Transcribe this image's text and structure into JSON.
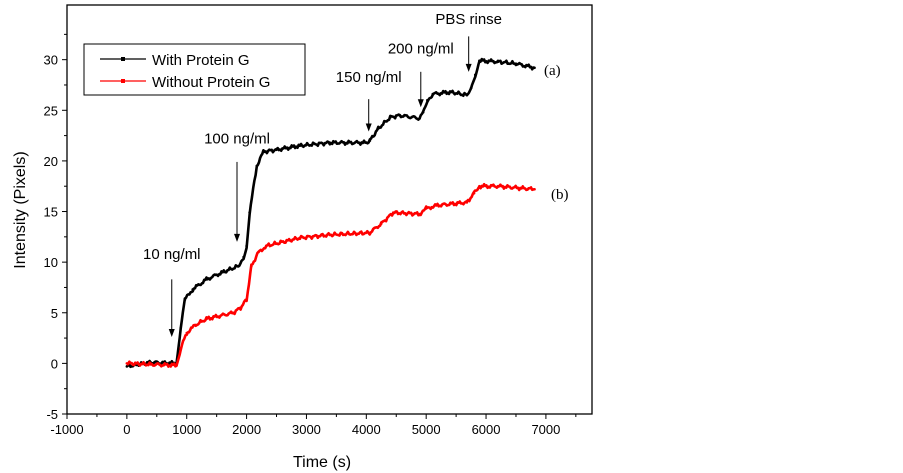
{
  "chart_data": {
    "type": "line",
    "title": "",
    "xlabel": "Time (s)",
    "ylabel": "Intensity (Pixels)",
    "xlim": [
      -1000,
      7770
    ],
    "ylim": [
      -5,
      35.4
    ],
    "xticks": [
      -1000,
      0,
      1000,
      2000,
      3000,
      4000,
      5000,
      6000,
      7000
    ],
    "yticks": [
      -5,
      0,
      5,
      10,
      15,
      20,
      25,
      30
    ],
    "grid": false,
    "legend_position": "top-left",
    "series": [
      {
        "name": "With Protein G",
        "color": "#000000",
        "label": "(a)",
        "x": [
          0,
          400,
          830,
          900,
          970,
          1100,
          1330,
          1600,
          1860,
          1950,
          2000,
          2050,
          2170,
          2280,
          2500,
          2890,
          3390,
          4000,
          4060,
          4200,
          4400,
          4560,
          4890,
          4950,
          5020,
          5110,
          5400,
          5680,
          5750,
          5820,
          5890,
          6200,
          6500,
          6810
        ],
        "y": [
          -0.3,
          0.1,
          0.0,
          3.5,
          6.3,
          7.3,
          8.3,
          9.0,
          9.6,
          10.5,
          11.6,
          14.9,
          19.5,
          20.9,
          21.1,
          21.5,
          21.8,
          21.8,
          22.0,
          23.2,
          24.3,
          24.5,
          24.2,
          24.8,
          26.0,
          26.6,
          26.8,
          26.5,
          27.2,
          28.5,
          29.9,
          29.8,
          29.6,
          29.2
        ]
      },
      {
        "name": "Without Protein G",
        "color": "#ff0000",
        "label": "(b)",
        "x": [
          0,
          400,
          830,
          900,
          1000,
          1150,
          1330,
          1780,
          1900,
          2000,
          2080,
          2200,
          2330,
          2890,
          3390,
          4057,
          4250,
          4450,
          4890,
          5000,
          5170,
          5680,
          5800,
          5890,
          6200,
          6810
        ],
        "y": [
          0.0,
          -0.1,
          -0.2,
          1.5,
          3.0,
          3.8,
          4.4,
          5.0,
          5.5,
          6.3,
          9.6,
          11.0,
          11.6,
          12.4,
          12.7,
          12.9,
          13.8,
          14.9,
          14.75,
          15.3,
          15.6,
          15.9,
          16.8,
          17.5,
          17.5,
          17.2
        ]
      }
    ],
    "annotations": [
      {
        "text": "10 ng/ml",
        "x": 750,
        "y_tail": 8.3,
        "y_tip": 2.6,
        "y_text": 10.8
      },
      {
        "text": "100 ng/ml",
        "x": 1840,
        "y_tail": 19.9,
        "y_tip": 12.0,
        "y_text": 22.2
      },
      {
        "text": "150 ng/ml",
        "x": 4040,
        "y_tail": 26.1,
        "y_tip": 22.9,
        "y_text": 28.3
      },
      {
        "text": "200 ng/ml",
        "x": 4910,
        "y_tail": 28.8,
        "y_tip": 25.3,
        "y_text": 31.1
      },
      {
        "text": "PBS rinse",
        "x": 5710,
        "y_tail": 32.3,
        "y_tip": 28.8,
        "y_text": 34.0
      }
    ]
  }
}
